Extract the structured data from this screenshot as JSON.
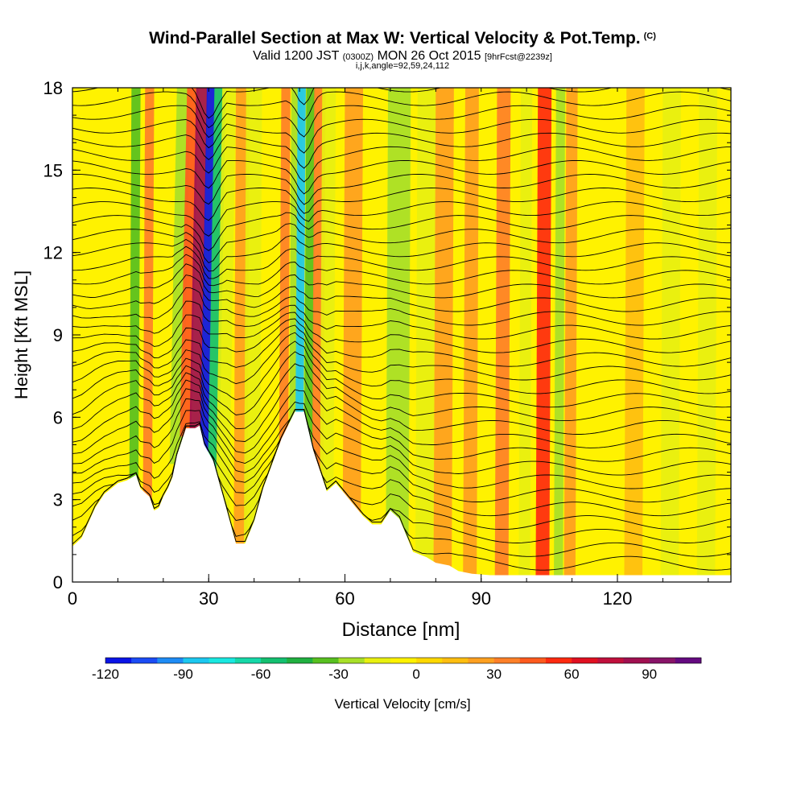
{
  "title": {
    "main": "Wind-Parallel Section at Max W: Vertical Velocity & Pot.Temp.",
    "copyright": "(C)",
    "valid_prefix": "Valid 1200 JST",
    "valid_utc": "(0300Z)",
    "valid_date": "MON 26 Oct 2015",
    "forecast": "[9hrFcst@2239z]",
    "indices": "i,j,k,angle=92,59,24,112"
  },
  "chart_data": {
    "type": "heatmap",
    "xlabel": "Distance [nm]",
    "ylabel": "Height [Kft MSL]",
    "xlim": [
      0,
      145
    ],
    "ylim": [
      0,
      18
    ],
    "xticks": [
      0,
      30,
      60,
      90,
      120
    ],
    "yticks": [
      0,
      3,
      6,
      9,
      12,
      15,
      18
    ],
    "colorbar": {
      "label": "Vertical Velocity [cm/s]",
      "ticks": [
        -120,
        -90,
        -60,
        -30,
        0,
        30,
        60,
        90
      ],
      "range": [
        -120,
        110
      ],
      "colors": [
        "#0a14e6",
        "#1b4cf5",
        "#1e8cf5",
        "#1cc8f0",
        "#19e8e0",
        "#16d8a8",
        "#14c070",
        "#20b040",
        "#58c020",
        "#a8e028",
        "#e8f010",
        "#fff200",
        "#ffd800",
        "#ffbe10",
        "#ffa020",
        "#ff8028",
        "#ff5a1e",
        "#ff2a10",
        "#e01020",
        "#c0103c",
        "#a01050",
        "#881468",
        "#640a80"
      ]
    },
    "terrain": [
      [
        0,
        1.3
      ],
      [
        2,
        1.6
      ],
      [
        5,
        2.7
      ],
      [
        7,
        3.2
      ],
      [
        10,
        3.6
      ],
      [
        12,
        3.7
      ],
      [
        14,
        3.9
      ],
      [
        15,
        3.4
      ],
      [
        17,
        3.1
      ],
      [
        18,
        2.6
      ],
      [
        19,
        2.7
      ],
      [
        20,
        3.1
      ],
      [
        21,
        3.4
      ],
      [
        22,
        3.8
      ],
      [
        23,
        4.6
      ],
      [
        25,
        5.6
      ],
      [
        27,
        5.6
      ],
      [
        28,
        5.7
      ],
      [
        29,
        5.0
      ],
      [
        31,
        4.4
      ],
      [
        33,
        3.2
      ],
      [
        35,
        2.0
      ],
      [
        36,
        1.4
      ],
      [
        38,
        1.4
      ],
      [
        40,
        2.2
      ],
      [
        42,
        3.4
      ],
      [
        44,
        4.3
      ],
      [
        46,
        5.2
      ],
      [
        49,
        6.2
      ],
      [
        51,
        6.2
      ],
      [
        53,
        4.8
      ],
      [
        55,
        3.8
      ],
      [
        56,
        3.3
      ],
      [
        58,
        3.6
      ],
      [
        60,
        3.2
      ],
      [
        62,
        2.8
      ],
      [
        64,
        2.4
      ],
      [
        66,
        2.1
      ],
      [
        68,
        2.1
      ],
      [
        70,
        2.6
      ],
      [
        72,
        2.3
      ],
      [
        74,
        1.5
      ],
      [
        75,
        1.1
      ],
      [
        78,
        0.9
      ],
      [
        80,
        0.7
      ],
      [
        83,
        0.6
      ],
      [
        85,
        0.4
      ],
      [
        88,
        0.3
      ],
      [
        92,
        0.25
      ],
      [
        145,
        0.25
      ]
    ],
    "bands": [
      {
        "x": 14,
        "width": 2.0,
        "value": -40
      },
      {
        "x": 17,
        "width": 2.0,
        "value": 30
      },
      {
        "x": 24.5,
        "width": 3.0,
        "value": -30
      },
      {
        "x": 26.5,
        "width": 2.5,
        "value": 40
      },
      {
        "x": 28.5,
        "width": 2.5,
        "value": 85
      },
      {
        "x": 30.5,
        "width": 1.8,
        "value": -120
      },
      {
        "x": 32.5,
        "width": 2.5,
        "value": -60
      },
      {
        "x": 34.5,
        "width": 3.0,
        "value": -20
      },
      {
        "x": 37.5,
        "width": 3.0,
        "value": 25
      },
      {
        "x": 40,
        "width": 3.5,
        "value": -15
      },
      {
        "x": 47,
        "width": 2.0,
        "value": 30
      },
      {
        "x": 49.5,
        "width": 2.5,
        "value": -25
      },
      {
        "x": 50.5,
        "width": 1.8,
        "value": -85
      },
      {
        "x": 52.5,
        "width": 2.0,
        "value": -40
      },
      {
        "x": 54.5,
        "width": 2.5,
        "value": 30
      },
      {
        "x": 56.5,
        "width": 3.0,
        "value": -15
      },
      {
        "x": 62,
        "width": 4.0,
        "value": 20
      },
      {
        "x": 66,
        "width": 4.0,
        "value": -10
      },
      {
        "x": 72,
        "width": 5.0,
        "value": -25
      },
      {
        "x": 78,
        "width": 4.0,
        "value": -20
      },
      {
        "x": 82,
        "width": 4.0,
        "value": 20
      },
      {
        "x": 88,
        "width": 3.0,
        "value": 25
      },
      {
        "x": 95,
        "width": 3.0,
        "value": 30
      },
      {
        "x": 100,
        "width": 2.5,
        "value": -20
      },
      {
        "x": 104,
        "width": 3.0,
        "value": 50
      },
      {
        "x": 107.5,
        "width": 2.0,
        "value": -25
      },
      {
        "x": 110,
        "width": 2.5,
        "value": 20
      },
      {
        "x": 116,
        "width": 4.0,
        "value": -10
      },
      {
        "x": 124,
        "width": 4.0,
        "value": 15
      },
      {
        "x": 132,
        "width": 4.0,
        "value": -15
      },
      {
        "x": 140,
        "width": 4.0,
        "value": -20
      }
    ],
    "isentrope_count": 36
  }
}
